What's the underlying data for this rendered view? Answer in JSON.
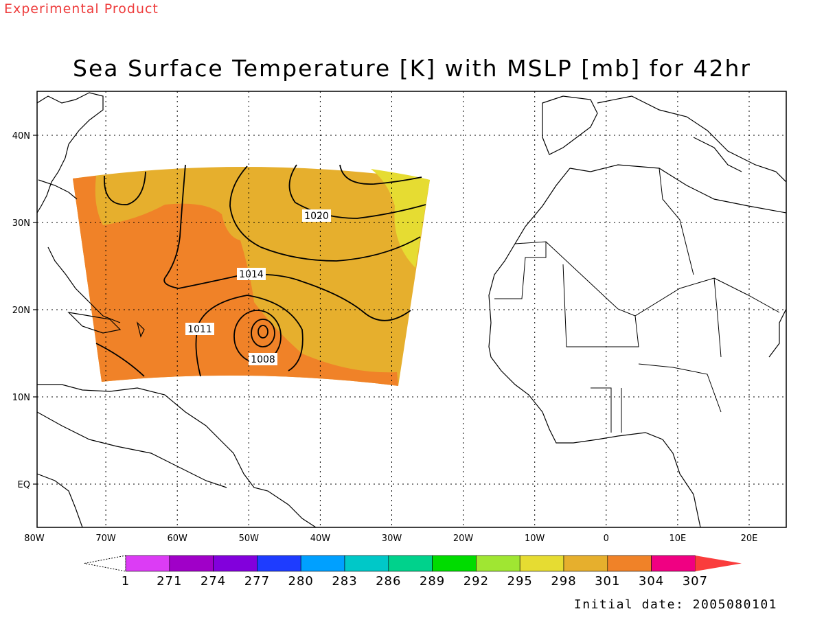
{
  "header": {
    "experimental_label": "Experimental Product",
    "title": "Sea Surface Temperature [K] with MSLP [mb] for 42hr"
  },
  "footer": {
    "initial_date": "Initial date: 2005080101"
  },
  "map": {
    "lon_labels": [
      "80W",
      "70W",
      "60W",
      "50W",
      "40W",
      "30W",
      "20W",
      "10W",
      "0",
      "10E",
      "20E"
    ],
    "lat_labels": [
      "40N",
      "30N",
      "20N",
      "10N",
      "EQ"
    ],
    "contour_labels": [
      "1020",
      "1014",
      "1011",
      "1008"
    ]
  },
  "colorbar": {
    "labels": [
      "1",
      "271",
      "274",
      "277",
      "280",
      "283",
      "286",
      "289",
      "292",
      "295",
      "298",
      "301",
      "304",
      "307"
    ],
    "colors": [
      "#dc3cf5",
      "#a000c8",
      "#8200dc",
      "#1e3cff",
      "#00a0ff",
      "#00c8c8",
      "#00d28c",
      "#00dc00",
      "#a0e632",
      "#e6dc32",
      "#e6af2d",
      "#f08228",
      "#f00082",
      "#fa3c3c"
    ]
  }
}
